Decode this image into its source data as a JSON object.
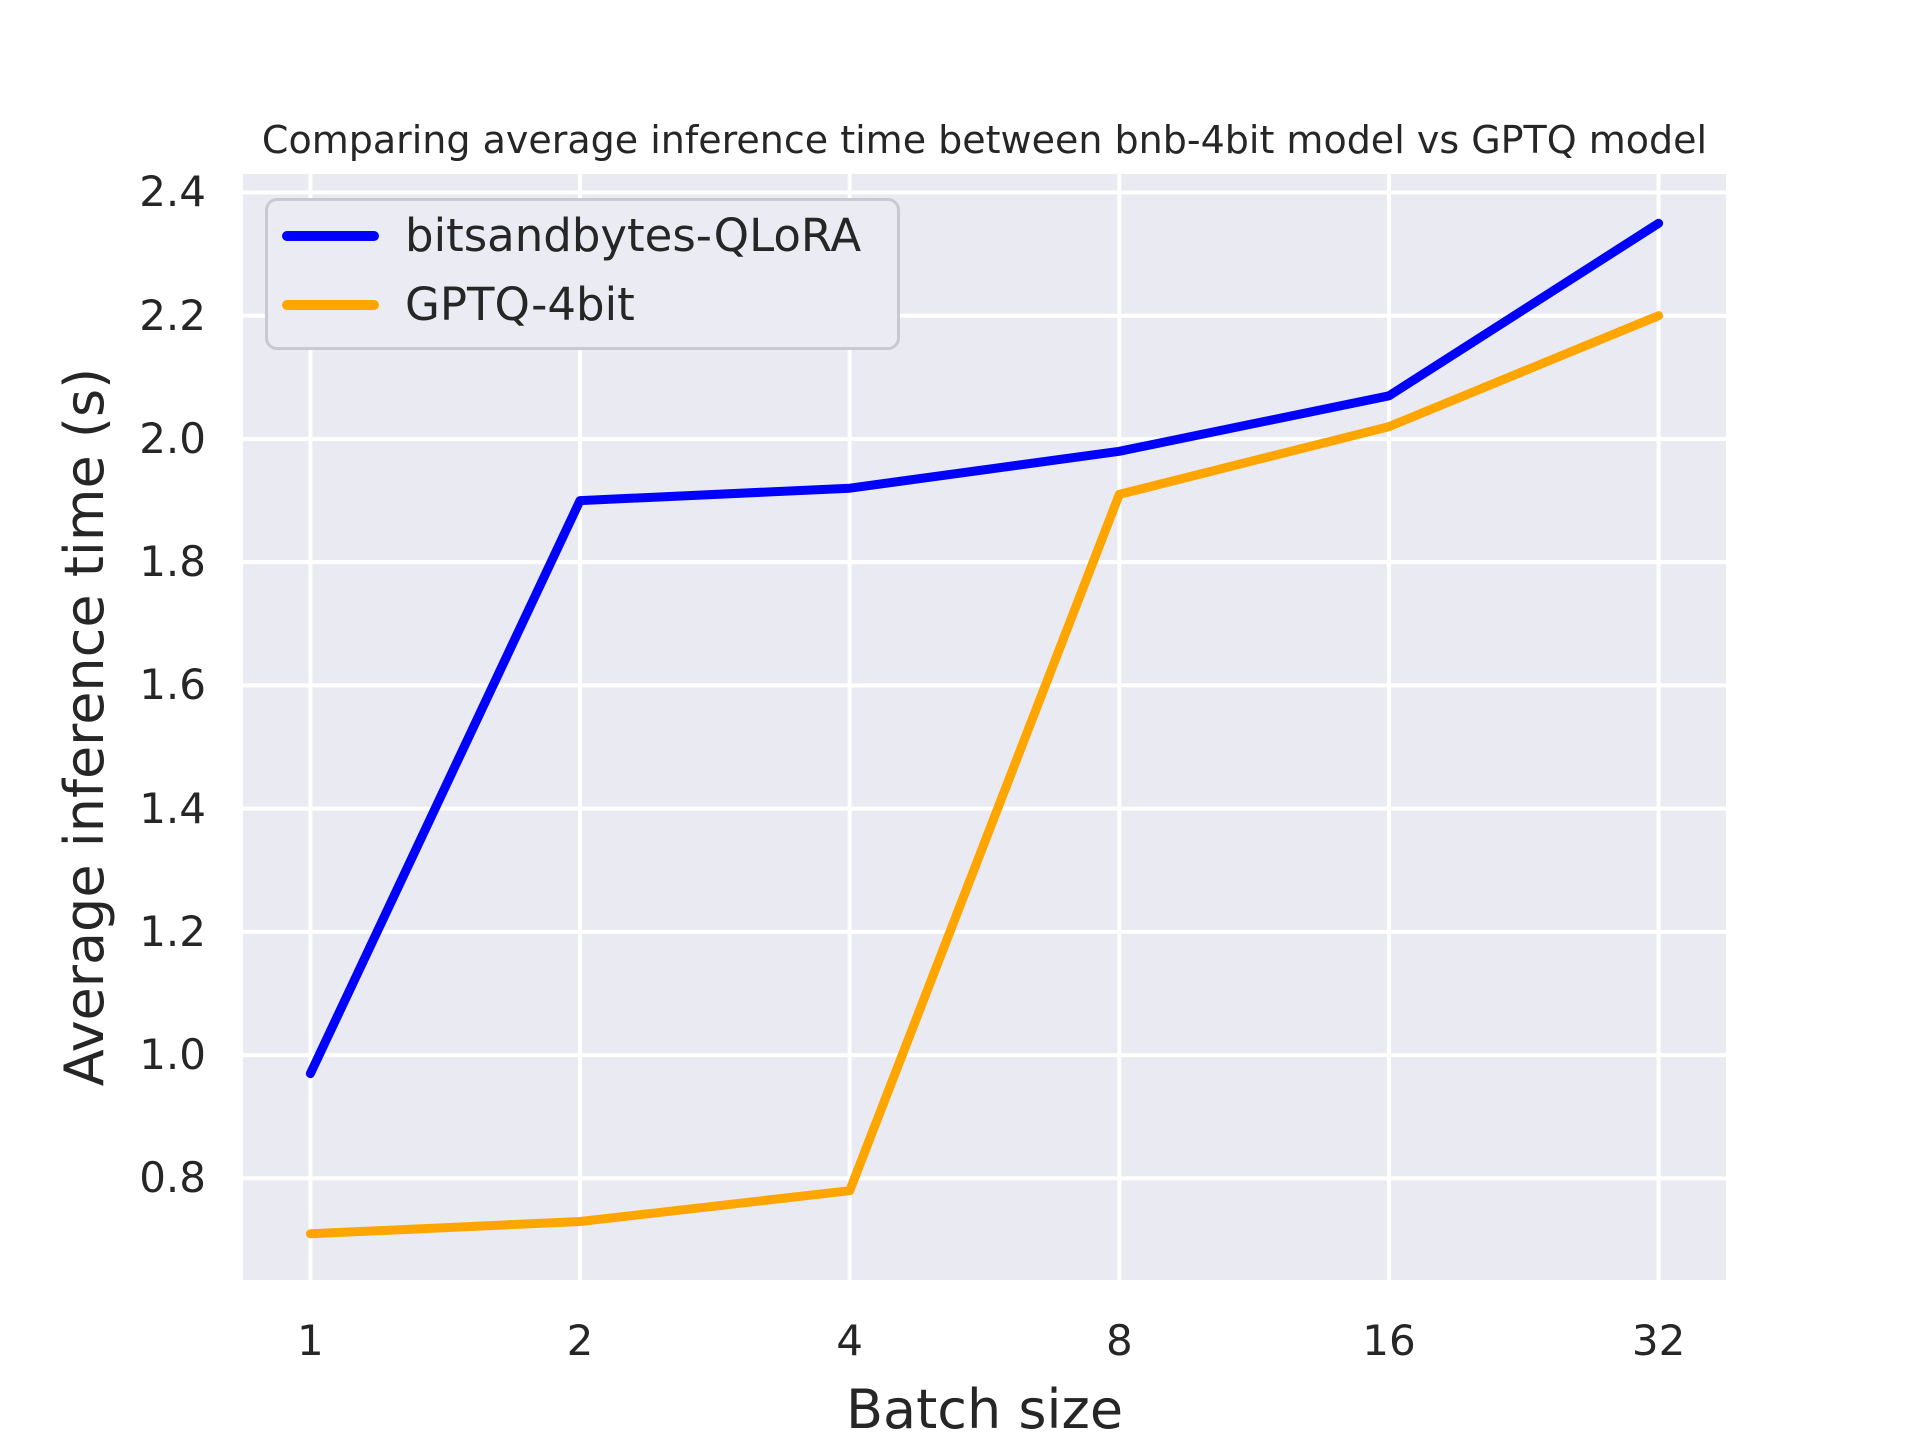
{
  "chart_data": {
    "type": "line",
    "title": "Comparing average inference time between bnb-4bit model vs GPTQ model",
    "xlabel": "Batch size",
    "ylabel": "Average inference time (s)",
    "x": [
      1,
      2,
      4,
      8,
      16,
      32
    ],
    "x_scale": "log2",
    "x_tick_labels": [
      "1",
      "2",
      "4",
      "8",
      "16",
      "32"
    ],
    "series": [
      {
        "name": "bitsandbytes-QLoRA",
        "color": "#0000ff",
        "values": [
          0.97,
          1.9,
          1.92,
          1.98,
          2.07,
          2.35
        ]
      },
      {
        "name": "GPTQ-4bit",
        "color": "#ffa500",
        "values": [
          0.71,
          0.73,
          0.78,
          1.91,
          2.02,
          2.2
        ]
      }
    ],
    "yticks": [
      0.8,
      1.0,
      1.2,
      1.4,
      1.6,
      1.8,
      2.0,
      2.2,
      2.4
    ],
    "ylim": [
      0.635,
      2.43
    ],
    "xlim_log2": [
      -0.25,
      5.25
    ],
    "grid": true,
    "legend_position": "upper left",
    "colors": {
      "plot_background": "#eaeaf2",
      "grid": "#ffffff",
      "text": "#262626"
    }
  }
}
